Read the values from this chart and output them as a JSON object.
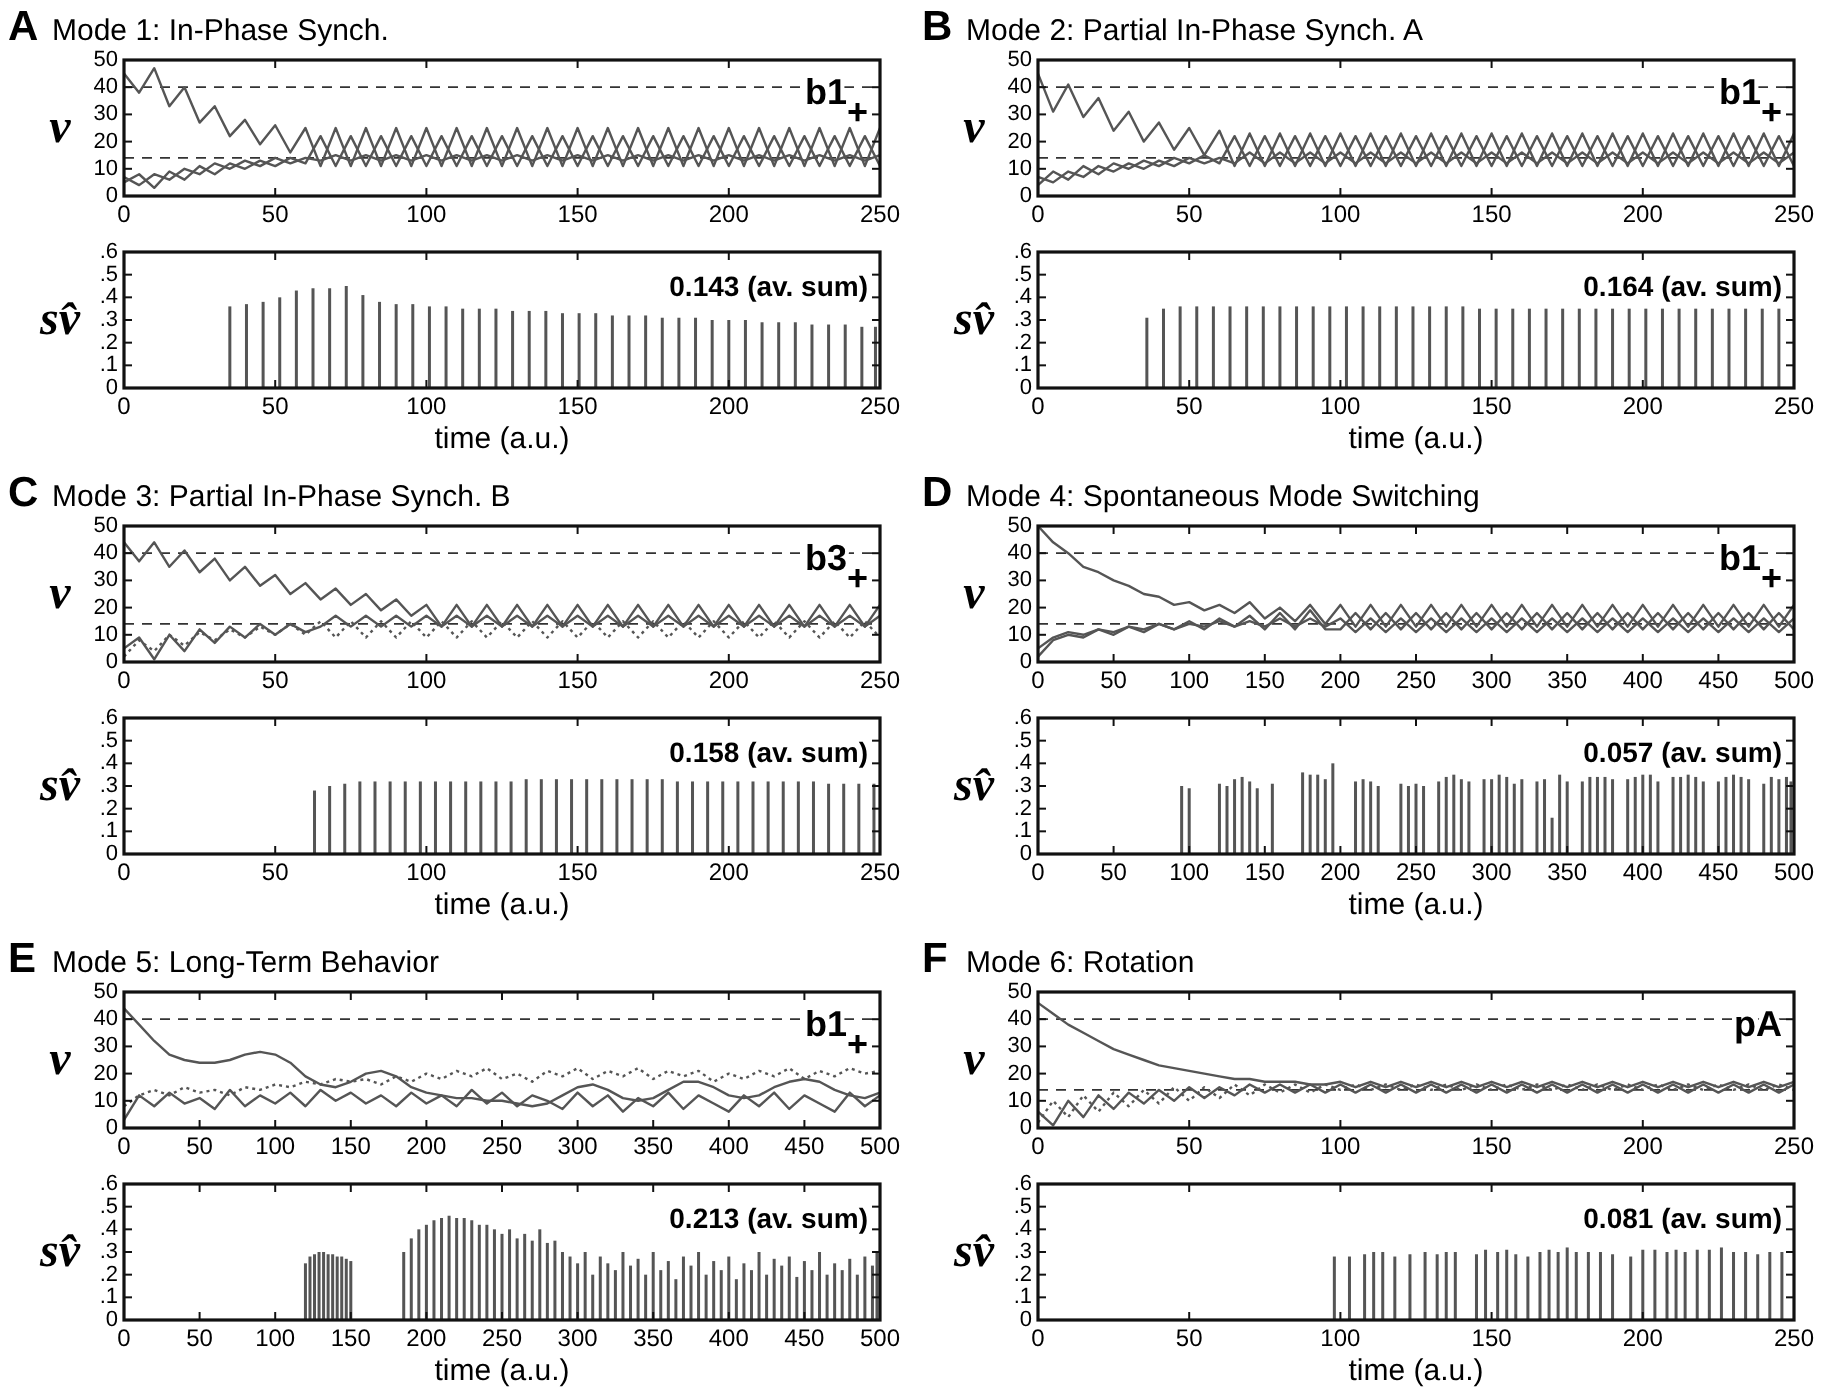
{
  "chart_data": [
    {
      "type": "line",
      "title": "Mode 1: In-Phase Synch.",
      "ylabel": "v",
      "annotations": [
        "A",
        "b1$_{+}$"
      ],
      "x": [
        0,
        5,
        10,
        15,
        20,
        25,
        30,
        35,
        40,
        45,
        50,
        55,
        60,
        65,
        70,
        75,
        80,
        85,
        90,
        95,
        100,
        105,
        110,
        115,
        120,
        125,
        130,
        135,
        140,
        145,
        150,
        155,
        160,
        165,
        170,
        175,
        180,
        185,
        190,
        195,
        200,
        205,
        210,
        215,
        220,
        225,
        230,
        235,
        240,
        245,
        250
      ],
      "xlim": [
        0,
        250
      ],
      "xticks": [
        0,
        50,
        100,
        150,
        200,
        250
      ],
      "ylim": [
        0,
        50
      ],
      "yticks": [
        0,
        10,
        20,
        30,
        40,
        50
      ],
      "ref_lines": [
        {
          "axis": "y",
          "value": 40,
          "line_style": "dashed"
        },
        {
          "axis": "y",
          "value": 14,
          "line_style": "dashed"
        }
      ],
      "series": [
        {
          "color": "#555555",
          "values": [
            45,
            38,
            47,
            33,
            40,
            27,
            33,
            22,
            28,
            19,
            26,
            16,
            25,
            11,
            25,
            11,
            25,
            11,
            25,
            11,
            25,
            11,
            25,
            11,
            25,
            11,
            25,
            11,
            25,
            11,
            25,
            11,
            25,
            11,
            25,
            11,
            25,
            11,
            25,
            11,
            25,
            11,
            25,
            11,
            25,
            11,
            25,
            11,
            25,
            11,
            25
          ]
        },
        {
          "color": "#555555",
          "values": [
            5,
            8,
            3,
            9,
            6,
            11,
            8,
            12,
            10,
            13,
            11,
            14,
            12,
            22,
            11,
            22,
            11,
            22,
            11,
            22,
            11,
            22,
            11,
            22,
            11,
            22,
            11,
            22,
            11,
            22,
            11,
            22,
            11,
            22,
            11,
            22,
            11,
            22,
            11,
            22,
            11,
            22,
            11,
            22,
            11,
            22,
            11,
            22,
            11,
            22,
            11
          ]
        },
        {
          "color": "#555555",
          "values": [
            7,
            4,
            8,
            6,
            10,
            8,
            12,
            10,
            13,
            11,
            14,
            12,
            14,
            13,
            15,
            13,
            15,
            13,
            15,
            13,
            15,
            13,
            15,
            13,
            15,
            13,
            15,
            13,
            15,
            13,
            15,
            13,
            15,
            13,
            15,
            13,
            15,
            13,
            15,
            13,
            15,
            13,
            15,
            13,
            15,
            13,
            15,
            13,
            15,
            13,
            15
          ]
        }
      ]
    },
    {
      "type": "bar",
      "ylabel": "sv̂",
      "xlabel": "time (a.u.)",
      "annotations": [
        "0.143 (av. sum)"
      ],
      "color": "#555555",
      "x": [
        35,
        40.5,
        46,
        51.5,
        57,
        62.5,
        68,
        73.5,
        79,
        84.5,
        90,
        95.5,
        101,
        106.5,
        112,
        117.5,
        123,
        128.5,
        134,
        139.5,
        145,
        150.5,
        156,
        161.5,
        167,
        172.5,
        178,
        183.5,
        189,
        194.5,
        200,
        205.5,
        211,
        216.5,
        222,
        227.5,
        233,
        238.5,
        244,
        248.5
      ],
      "values": [
        0.36,
        0.37,
        0.38,
        0.4,
        0.43,
        0.44,
        0.44,
        0.45,
        0.41,
        0.38,
        0.37,
        0.37,
        0.36,
        0.36,
        0.35,
        0.35,
        0.35,
        0.34,
        0.34,
        0.34,
        0.33,
        0.33,
        0.33,
        0.32,
        0.32,
        0.32,
        0.31,
        0.31,
        0.31,
        0.3,
        0.3,
        0.3,
        0.29,
        0.29,
        0.29,
        0.28,
        0.28,
        0.28,
        0.27,
        0.27
      ],
      "xlim": [
        0,
        250
      ],
      "xticks": [
        0,
        50,
        100,
        150,
        200,
        250
      ],
      "ylim": [
        0,
        0.6
      ],
      "yticks": [
        0,
        {
          "value": 0.1,
          "label": ".1"
        },
        {
          "value": 0.2,
          "label": ".2"
        },
        {
          "value": 0.3,
          "label": ".3"
        },
        {
          "value": 0.4,
          "label": ".4"
        },
        {
          "value": 0.5,
          "label": ".5"
        },
        {
          "value": 0.6,
          "label": ".6"
        }
      ]
    },
    {
      "type": "line",
      "title": "Mode 2: Partial In-Phase Synch. A",
      "ylabel": "v",
      "annotations": [
        "B",
        "b1$_{+}$"
      ],
      "x": [
        0,
        5,
        10,
        15,
        20,
        25,
        30,
        35,
        40,
        45,
        50,
        55,
        60,
        65,
        70,
        75,
        80,
        85,
        90,
        95,
        100,
        105,
        110,
        115,
        120,
        125,
        130,
        135,
        140,
        145,
        150,
        155,
        160,
        165,
        170,
        175,
        180,
        185,
        190,
        195,
        200,
        205,
        210,
        215,
        220,
        225,
        230,
        235,
        240,
        245,
        250
      ],
      "xlim": [
        0,
        250
      ],
      "xticks": [
        0,
        50,
        100,
        150,
        200,
        250
      ],
      "ylim": [
        0,
        50
      ],
      "yticks": [
        0,
        10,
        20,
        30,
        40,
        50
      ],
      "ref_lines": [
        {
          "axis": "y",
          "value": 40,
          "line_style": "dashed"
        },
        {
          "axis": "y",
          "value": 14,
          "line_style": "dashed"
        }
      ],
      "series": [
        {
          "color": "#555555",
          "values": [
            45,
            31,
            41,
            29,
            36,
            24,
            31,
            20,
            27,
            17,
            25,
            15,
            24,
            11,
            23,
            11,
            23,
            11,
            23,
            11,
            23,
            11,
            23,
            11,
            23,
            11,
            23,
            11,
            23,
            11,
            23,
            11,
            23,
            11,
            23,
            11,
            23,
            11,
            23,
            11,
            23,
            11,
            23,
            11,
            23,
            11,
            23,
            11,
            23,
            11,
            23
          ]
        },
        {
          "color": "#555555",
          "values": [
            4,
            9,
            6,
            11,
            8,
            12,
            10,
            13,
            11,
            14,
            12,
            15,
            12,
            22,
            11,
            22,
            11,
            22,
            11,
            22,
            11,
            22,
            11,
            22,
            11,
            22,
            11,
            22,
            11,
            22,
            11,
            22,
            11,
            22,
            11,
            22,
            11,
            22,
            11,
            22,
            11,
            22,
            11,
            22,
            11,
            22,
            11,
            22,
            11,
            22,
            11
          ]
        },
        {
          "color": "#555555",
          "values": [
            7,
            5,
            9,
            7,
            11,
            9,
            12,
            10,
            13,
            11,
            14,
            12,
            14,
            12,
            16,
            12,
            16,
            12,
            16,
            12,
            16,
            12,
            16,
            12,
            16,
            12,
            16,
            12,
            16,
            12,
            16,
            12,
            16,
            12,
            16,
            12,
            16,
            12,
            16,
            12,
            16,
            12,
            16,
            12,
            16,
            12,
            16,
            12,
            16,
            12,
            16
          ]
        }
      ]
    },
    {
      "type": "bar",
      "ylabel": "sv̂",
      "xlabel": "time (a.u.)",
      "annotations": [
        "0.164 (av. sum)"
      ],
      "color": "#555555",
      "x": [
        36,
        41.5,
        47,
        52.5,
        58,
        63.5,
        69,
        74.5,
        80,
        85.5,
        91,
        96.5,
        102,
        107.5,
        113,
        118.5,
        124,
        129.5,
        135,
        140.5,
        146,
        151.5,
        157,
        162.5,
        168,
        173.5,
        179,
        184.5,
        190,
        195.5,
        201,
        206.5,
        212,
        217.5,
        223,
        228.5,
        234,
        239.5,
        245
      ],
      "values": [
        0.31,
        0.35,
        0.36,
        0.36,
        0.36,
        0.36,
        0.36,
        0.36,
        0.36,
        0.36,
        0.36,
        0.36,
        0.36,
        0.36,
        0.36,
        0.36,
        0.36,
        0.36,
        0.36,
        0.36,
        0.35,
        0.35,
        0.35,
        0.35,
        0.35,
        0.35,
        0.35,
        0.35,
        0.35,
        0.35,
        0.35,
        0.35,
        0.35,
        0.35,
        0.35,
        0.35,
        0.35,
        0.35,
        0.35
      ],
      "xlim": [
        0,
        250
      ],
      "xticks": [
        0,
        50,
        100,
        150,
        200,
        250
      ],
      "ylim": [
        0,
        0.6
      ],
      "yticks": [
        0,
        {
          "value": 0.1,
          "label": ".1"
        },
        {
          "value": 0.2,
          "label": ".2"
        },
        {
          "value": 0.3,
          "label": ".3"
        },
        {
          "value": 0.4,
          "label": ".4"
        },
        {
          "value": 0.5,
          "label": ".5"
        },
        {
          "value": 0.6,
          "label": ".6"
        }
      ]
    },
    {
      "type": "line",
      "title": "Mode 3: Partial In-Phase Synch. B",
      "ylabel": "v",
      "annotations": [
        "C",
        "b3$_{+}$"
      ],
      "x": [
        0,
        5,
        10,
        15,
        20,
        25,
        30,
        35,
        40,
        45,
        50,
        55,
        60,
        65,
        70,
        75,
        80,
        85,
        90,
        95,
        100,
        105,
        110,
        115,
        120,
        125,
        130,
        135,
        140,
        145,
        150,
        155,
        160,
        165,
        170,
        175,
        180,
        185,
        190,
        195,
        200,
        205,
        210,
        215,
        220,
        225,
        230,
        235,
        240,
        245,
        250
      ],
      "xlim": [
        0,
        250
      ],
      "xticks": [
        0,
        50,
        100,
        150,
        200,
        250
      ],
      "ylim": [
        0,
        50
      ],
      "yticks": [
        0,
        10,
        20,
        30,
        40,
        50
      ],
      "ref_lines": [
        {
          "axis": "y",
          "value": 40,
          "line_style": "dashed"
        },
        {
          "axis": "y",
          "value": 14,
          "line_style": "dashed"
        }
      ],
      "series": [
        {
          "color": "#555555",
          "values": [
            44,
            37,
            44,
            35,
            41,
            33,
            38,
            30,
            35,
            28,
            32,
            25,
            29,
            23,
            27,
            21,
            25,
            19,
            23,
            17,
            21,
            13,
            21,
            13,
            21,
            13,
            21,
            13,
            21,
            13,
            21,
            13,
            21,
            13,
            21,
            13,
            21,
            13,
            21,
            13,
            21,
            13,
            21,
            13,
            21,
            13,
            21,
            13,
            21,
            13,
            21
          ]
        },
        {
          "color": "#555555",
          "line_style": "dotted",
          "values": [
            2,
            8,
            4,
            10,
            6,
            11,
            8,
            12,
            9,
            13,
            10,
            14,
            10,
            15,
            9,
            15,
            9,
            15,
            9,
            15,
            9,
            15,
            9,
            15,
            9,
            15,
            9,
            15,
            9,
            15,
            9,
            15,
            9,
            15,
            9,
            15,
            9,
            15,
            9,
            15,
            9,
            15,
            9,
            15,
            9,
            15,
            9,
            15,
            9,
            15,
            9
          ]
        },
        {
          "color": "#555555",
          "values": [
            5,
            9,
            1,
            10,
            4,
            12,
            7,
            13,
            9,
            14,
            10,
            14,
            11,
            13,
            17,
            13,
            17,
            13,
            17,
            13,
            17,
            13,
            17,
            13,
            17,
            13,
            17,
            13,
            17,
            13,
            17,
            13,
            17,
            13,
            17,
            13,
            17,
            13,
            17,
            13,
            17,
            13,
            17,
            13,
            17,
            13,
            17,
            13,
            17,
            13,
            17
          ]
        }
      ]
    },
    {
      "type": "bar",
      "ylabel": "sv̂",
      "xlabel": "time (a.u.)",
      "annotations": [
        "0.158 (av. sum)"
      ],
      "color": "#555555",
      "x": [
        63,
        68,
        73,
        78,
        83,
        88,
        93,
        98,
        103,
        108,
        113,
        118,
        123,
        128,
        133,
        138,
        143,
        148,
        153,
        158,
        163,
        168,
        173,
        178,
        183,
        188,
        193,
        198,
        203,
        208,
        213,
        218,
        223,
        228,
        233,
        238,
        243,
        248
      ],
      "values": [
        0.28,
        0.3,
        0.31,
        0.32,
        0.32,
        0.32,
        0.32,
        0.32,
        0.32,
        0.32,
        0.32,
        0.32,
        0.32,
        0.32,
        0.33,
        0.33,
        0.33,
        0.33,
        0.33,
        0.33,
        0.33,
        0.33,
        0.33,
        0.33,
        0.32,
        0.32,
        0.32,
        0.32,
        0.32,
        0.32,
        0.32,
        0.32,
        0.32,
        0.32,
        0.31,
        0.31,
        0.31,
        0.31
      ],
      "xlim": [
        0,
        250
      ],
      "xticks": [
        0,
        50,
        100,
        150,
        200,
        250
      ],
      "ylim": [
        0,
        0.6
      ],
      "yticks": [
        0,
        {
          "value": 0.1,
          "label": ".1"
        },
        {
          "value": 0.2,
          "label": ".2"
        },
        {
          "value": 0.3,
          "label": ".3"
        },
        {
          "value": 0.4,
          "label": ".4"
        },
        {
          "value": 0.5,
          "label": ".5"
        },
        {
          "value": 0.6,
          "label": ".6"
        }
      ]
    },
    {
      "type": "line",
      "title": "Mode 4: Spontaneous Mode Switching",
      "ylabel": "v",
      "annotations": [
        "D",
        "b1$_{+}$"
      ],
      "x": [
        0,
        10,
        20,
        30,
        40,
        50,
        60,
        70,
        80,
        90,
        100,
        110,
        120,
        130,
        140,
        150,
        160,
        170,
        180,
        190,
        200,
        210,
        220,
        230,
        240,
        250,
        260,
        270,
        280,
        290,
        300,
        310,
        320,
        330,
        340,
        350,
        360,
        370,
        380,
        390,
        400,
        410,
        420,
        430,
        440,
        450,
        460,
        470,
        480,
        490,
        500
      ],
      "xlim": [
        0,
        500
      ],
      "xticks": [
        0,
        50,
        100,
        150,
        200,
        250,
        300,
        350,
        400,
        450,
        500
      ],
      "ylim": [
        0,
        50
      ],
      "yticks": [
        0,
        10,
        20,
        30,
        40,
        50
      ],
      "ref_lines": [
        {
          "axis": "y",
          "value": 40,
          "line_style": "dashed"
        },
        {
          "axis": "y",
          "value": 14,
          "line_style": "dashed"
        }
      ],
      "series": [
        {
          "color": "#555555",
          "values": [
            50,
            44,
            40,
            35,
            33,
            30,
            28,
            25,
            24,
            21,
            22,
            19,
            21,
            18,
            22,
            16,
            20,
            15,
            21,
            14,
            21,
            13,
            21,
            13,
            21,
            13,
            21,
            13,
            21,
            13,
            21,
            13,
            21,
            13,
            21,
            13,
            21,
            13,
            21,
            13,
            21,
            13,
            21,
            13,
            21,
            13,
            21,
            13,
            21,
            13,
            21
          ]
        },
        {
          "color": "#555555",
          "values": [
            2,
            8,
            10,
            9,
            12,
            10,
            13,
            11,
            14,
            12,
            15,
            12,
            16,
            13,
            17,
            12,
            18,
            12,
            19,
            12,
            12,
            18,
            12,
            18,
            12,
            18,
            12,
            18,
            12,
            18,
            12,
            18,
            12,
            18,
            12,
            18,
            12,
            18,
            12,
            18,
            12,
            18,
            12,
            18,
            12,
            18,
            12,
            18,
            12,
            18,
            12
          ]
        },
        {
          "color": "#555555",
          "values": [
            5,
            9,
            11,
            10,
            12,
            11,
            13,
            12,
            14,
            12,
            14,
            13,
            15,
            13,
            15,
            13,
            16,
            13,
            16,
            13,
            16,
            11,
            16,
            11,
            16,
            11,
            16,
            11,
            16,
            11,
            16,
            11,
            16,
            11,
            16,
            11,
            16,
            11,
            16,
            11,
            16,
            11,
            16,
            11,
            16,
            11,
            16,
            11,
            16,
            11,
            16
          ]
        }
      ]
    },
    {
      "type": "bar",
      "ylabel": "sv̂",
      "xlabel": "time (a.u.)",
      "annotations": [
        "0.057 (av. sum)"
      ],
      "color": "#555555",
      "x": [
        95,
        100,
        120,
        125,
        130,
        135,
        140,
        145,
        155,
        175,
        180,
        185,
        190,
        195,
        210,
        215,
        220,
        225,
        240,
        245,
        250,
        255,
        265,
        270,
        275,
        280,
        285,
        295,
        300,
        305,
        310,
        315,
        320,
        330,
        335,
        340,
        345,
        350,
        360,
        365,
        370,
        375,
        380,
        390,
        395,
        400,
        405,
        410,
        420,
        425,
        430,
        435,
        440,
        450,
        455,
        460,
        465,
        470,
        480,
        485,
        490,
        495,
        498
      ],
      "values": [
        0.3,
        0.29,
        0.31,
        0.3,
        0.33,
        0.34,
        0.32,
        0.29,
        0.31,
        0.36,
        0.35,
        0.35,
        0.33,
        0.4,
        0.32,
        0.33,
        0.32,
        0.3,
        0.31,
        0.3,
        0.31,
        0.3,
        0.32,
        0.34,
        0.35,
        0.33,
        0.32,
        0.33,
        0.33,
        0.35,
        0.34,
        0.31,
        0.33,
        0.32,
        0.33,
        0.16,
        0.35,
        0.32,
        0.32,
        0.34,
        0.34,
        0.34,
        0.33,
        0.33,
        0.34,
        0.35,
        0.35,
        0.32,
        0.34,
        0.34,
        0.35,
        0.34,
        0.32,
        0.32,
        0.34,
        0.35,
        0.34,
        0.33,
        0.31,
        0.34,
        0.33,
        0.34,
        0.32
      ],
      "xlim": [
        0,
        500
      ],
      "xticks": [
        0,
        50,
        100,
        150,
        200,
        250,
        300,
        350,
        400,
        450,
        500
      ],
      "ylim": [
        0,
        0.6
      ],
      "yticks": [
        0,
        {
          "value": 0.1,
          "label": ".1"
        },
        {
          "value": 0.2,
          "label": ".2"
        },
        {
          "value": 0.3,
          "label": ".3"
        },
        {
          "value": 0.4,
          "label": ".4"
        },
        {
          "value": 0.5,
          "label": ".5"
        },
        {
          "value": 0.6,
          "label": ".6"
        }
      ]
    },
    {
      "type": "line",
      "title": "Mode 5: Long-Term Behavior",
      "ylabel": "v",
      "annotations": [
        "E",
        "b1$_{+}$"
      ],
      "x": [
        0,
        10,
        20,
        30,
        40,
        50,
        60,
        70,
        80,
        90,
        100,
        110,
        120,
        130,
        140,
        150,
        160,
        170,
        180,
        190,
        200,
        210,
        220,
        230,
        240,
        250,
        260,
        270,
        280,
        290,
        300,
        310,
        320,
        330,
        340,
        350,
        360,
        370,
        380,
        390,
        400,
        410,
        420,
        430,
        440,
        450,
        460,
        470,
        480,
        490,
        500
      ],
      "xlim": [
        0,
        500
      ],
      "xticks": [
        0,
        50,
        100,
        150,
        200,
        250,
        300,
        350,
        400,
        450,
        500
      ],
      "ylim": [
        0,
        50
      ],
      "yticks": [
        0,
        10,
        20,
        30,
        40,
        50
      ],
      "ref_lines": [
        {
          "axis": "y",
          "value": 40,
          "line_style": "dashed"
        }
      ],
      "series": [
        {
          "color": "#555555",
          "values": [
            44,
            38,
            32,
            27,
            25,
            24,
            24,
            25,
            27,
            28,
            27,
            24,
            19,
            16,
            15,
            17,
            20,
            21,
            19,
            15,
            13,
            12,
            11,
            11,
            10,
            10,
            9,
            8,
            9,
            12,
            15,
            16,
            14,
            11,
            10,
            11,
            14,
            17,
            17,
            15,
            12,
            11,
            12,
            15,
            17,
            18,
            17,
            14,
            12,
            11,
            13
          ]
        },
        {
          "color": "#555555",
          "values": [
            3,
            12,
            8,
            13,
            9,
            11,
            7,
            14,
            8,
            12,
            9,
            13,
            8,
            14,
            10,
            13,
            9,
            12,
            8,
            13,
            9,
            12,
            8,
            14,
            9,
            13,
            8,
            12,
            10,
            7,
            13,
            8,
            12,
            6,
            11,
            8,
            13,
            7,
            12,
            9,
            6,
            12,
            8,
            13,
            7,
            12,
            9,
            6,
            13,
            8,
            12
          ]
        },
        {
          "color": "#555555",
          "line_style": "dotted",
          "values": [
            8,
            12,
            14,
            12,
            15,
            13,
            14,
            12,
            15,
            14,
            16,
            15,
            17,
            16,
            18,
            17,
            18,
            16,
            19,
            17,
            20,
            18,
            21,
            19,
            22,
            18,
            20,
            17,
            21,
            19,
            22,
            18,
            21,
            19,
            22,
            18,
            21,
            19,
            21,
            17,
            20,
            18,
            21,
            19,
            22,
            18,
            21,
            19,
            22,
            20,
            21
          ]
        }
      ]
    },
    {
      "type": "bar",
      "ylabel": "sv̂",
      "xlabel": "time (a.u.)",
      "annotations": [
        "0.213 (av. sum)"
      ],
      "color": "#555555",
      "x": [
        120,
        123,
        126,
        129,
        132,
        135,
        138,
        141,
        144,
        147,
        150,
        185,
        190,
        195,
        200,
        205,
        210,
        215,
        220,
        225,
        230,
        235,
        240,
        245,
        250,
        255,
        260,
        265,
        270,
        275,
        280,
        285,
        290,
        295,
        300,
        305,
        310,
        315,
        320,
        325,
        330,
        335,
        340,
        345,
        350,
        355,
        360,
        365,
        370,
        375,
        380,
        385,
        390,
        395,
        400,
        405,
        410,
        415,
        420,
        425,
        430,
        435,
        440,
        445,
        450,
        455,
        460,
        465,
        470,
        475,
        480,
        485,
        490,
        495,
        498
      ],
      "values": [
        0.25,
        0.28,
        0.29,
        0.3,
        0.3,
        0.29,
        0.29,
        0.28,
        0.28,
        0.27,
        0.26,
        0.3,
        0.36,
        0.4,
        0.42,
        0.44,
        0.45,
        0.46,
        0.45,
        0.45,
        0.44,
        0.42,
        0.42,
        0.4,
        0.38,
        0.4,
        0.36,
        0.38,
        0.35,
        0.4,
        0.34,
        0.35,
        0.3,
        0.28,
        0.25,
        0.3,
        0.2,
        0.28,
        0.25,
        0.22,
        0.3,
        0.24,
        0.27,
        0.2,
        0.3,
        0.22,
        0.26,
        0.18,
        0.28,
        0.24,
        0.3,
        0.2,
        0.26,
        0.22,
        0.28,
        0.18,
        0.25,
        0.22,
        0.3,
        0.2,
        0.27,
        0.24,
        0.28,
        0.19,
        0.26,
        0.22,
        0.3,
        0.2,
        0.25,
        0.22,
        0.27,
        0.2,
        0.28,
        0.24,
        0.3
      ],
      "xlim": [
        0,
        500
      ],
      "xticks": [
        0,
        50,
        100,
        150,
        200,
        250,
        300,
        350,
        400,
        450,
        500
      ],
      "ylim": [
        0,
        0.6
      ],
      "yticks": [
        0,
        {
          "value": 0.1,
          "label": ".1"
        },
        {
          "value": 0.2,
          "label": ".2"
        },
        {
          "value": 0.3,
          "label": ".3"
        },
        {
          "value": 0.4,
          "label": ".4"
        },
        {
          "value": 0.5,
          "label": ".5"
        },
        {
          "value": 0.6,
          "label": ".6"
        }
      ]
    },
    {
      "type": "line",
      "title": "Mode 6: Rotation",
      "ylabel": "v",
      "annotations": [
        "F",
        "pA"
      ],
      "x": [
        0,
        5,
        10,
        15,
        20,
        25,
        30,
        35,
        40,
        45,
        50,
        55,
        60,
        65,
        70,
        75,
        80,
        85,
        90,
        95,
        100,
        105,
        110,
        115,
        120,
        125,
        130,
        135,
        140,
        145,
        150,
        155,
        160,
        165,
        170,
        175,
        180,
        185,
        190,
        195,
        200,
        205,
        210,
        215,
        220,
        225,
        230,
        235,
        240,
        245,
        250
      ],
      "xlim": [
        0,
        250
      ],
      "xticks": [
        0,
        50,
        100,
        150,
        200,
        250
      ],
      "ylim": [
        0,
        50
      ],
      "yticks": [
        0,
        10,
        20,
        30,
        40,
        50
      ],
      "ref_lines": [
        {
          "axis": "y",
          "value": 40,
          "line_style": "dashed"
        },
        {
          "axis": "y",
          "value": 14,
          "line_style": "dashed"
        }
      ],
      "series": [
        {
          "color": "#555555",
          "values": [
            46,
            42,
            38,
            35,
            32,
            29,
            27,
            25,
            23,
            22,
            21,
            20,
            19,
            18,
            18,
            17,
            17,
            17,
            16,
            16,
            17,
            15,
            17,
            15,
            17,
            15,
            17,
            15,
            17,
            15,
            17,
            15,
            17,
            15,
            17,
            15,
            17,
            15,
            17,
            15,
            17,
            15,
            17,
            15,
            17,
            15,
            17,
            15,
            17,
            15,
            17
          ]
        },
        {
          "color": "#555555",
          "line_style": "dotted",
          "values": [
            2,
            10,
            4,
            12,
            6,
            13,
            8,
            14,
            9,
            15,
            10,
            15,
            11,
            16,
            12,
            16,
            13,
            16,
            13,
            16,
            14,
            16,
            14,
            16,
            14,
            16,
            14,
            16,
            14,
            16,
            14,
            16,
            14,
            16,
            14,
            16,
            14,
            16,
            14,
            16,
            14,
            16,
            14,
            16,
            14,
            16,
            14,
            16,
            14,
            16,
            14
          ]
        },
        {
          "color": "#555555",
          "values": [
            6,
            1,
            10,
            4,
            12,
            7,
            13,
            9,
            14,
            10,
            15,
            11,
            15,
            12,
            16,
            13,
            16,
            13,
            16,
            13,
            16,
            13,
            16,
            13,
            16,
            13,
            16,
            13,
            16,
            13,
            16,
            13,
            16,
            13,
            16,
            13,
            16,
            13,
            16,
            13,
            16,
            13,
            16,
            13,
            16,
            13,
            16,
            13,
            16,
            13,
            16
          ]
        }
      ]
    },
    {
      "type": "bar",
      "ylabel": "sv̂",
      "xlabel": "time (a.u.)",
      "annotations": [
        "0.081 (av. sum)"
      ],
      "color": "#555555",
      "x": [
        98,
        103,
        108,
        111,
        114,
        118,
        123,
        128,
        132,
        135,
        138,
        145,
        148,
        152,
        155,
        158,
        162,
        166,
        169,
        172,
        175,
        178,
        182,
        186,
        190,
        196,
        200,
        204,
        208,
        211,
        214,
        218,
        222,
        226,
        230,
        234,
        238,
        242,
        246
      ],
      "values": [
        0.28,
        0.28,
        0.29,
        0.3,
        0.3,
        0.28,
        0.29,
        0.3,
        0.29,
        0.3,
        0.3,
        0.29,
        0.31,
        0.3,
        0.31,
        0.29,
        0.28,
        0.3,
        0.31,
        0.3,
        0.32,
        0.3,
        0.3,
        0.3,
        0.29,
        0.28,
        0.31,
        0.31,
        0.3,
        0.31,
        0.3,
        0.31,
        0.31,
        0.32,
        0.3,
        0.3,
        0.29,
        0.3,
        0.3
      ],
      "xlim": [
        0,
        250
      ],
      "xticks": [
        0,
        50,
        100,
        150,
        200,
        250
      ],
      "ylim": [
        0,
        0.6
      ],
      "yticks": [
        0,
        {
          "value": 0.1,
          "label": ".1"
        },
        {
          "value": 0.2,
          "label": ".2"
        },
        {
          "value": 0.3,
          "label": ".3"
        },
        {
          "value": 0.4,
          "label": ".4"
        },
        {
          "value": 0.5,
          "label": ".5"
        },
        {
          "value": 0.6,
          "label": ".6"
        }
      ]
    }
  ]
}
